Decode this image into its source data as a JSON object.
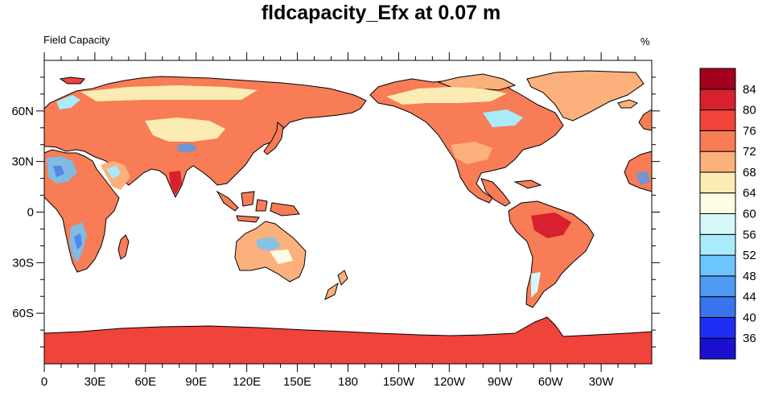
{
  "title": "fldcapacity_Efx at 0.07 m",
  "left_string": "Field Capacity",
  "units": "%",
  "map": {
    "projection": "cylindrical equidistant",
    "center_longitude": 180,
    "lon_range": [
      0,
      360
    ],
    "lat_range": [
      -90,
      90
    ],
    "ocean_color": "#ffffff",
    "antarctica_color": "#f0433a",
    "coastline_color": "#000000",
    "x_tick_labels": [
      "0",
      "30E",
      "60E",
      "90E",
      "120E",
      "150E",
      "180",
      "150W",
      "120W",
      "90W",
      "60W",
      "30W"
    ],
    "x_tick_lons": [
      0,
      30,
      60,
      90,
      120,
      150,
      180,
      210,
      240,
      270,
      300,
      330
    ],
    "y_tick_labels": [
      "60N",
      "30N",
      "0",
      "30S",
      "60S"
    ],
    "y_tick_lats": [
      60,
      30,
      0,
      -30,
      -60
    ]
  },
  "colorbar": {
    "labels": [
      "36",
      "40",
      "44",
      "48",
      "52",
      "56",
      "60",
      "64",
      "68",
      "72",
      "76",
      "80",
      "84"
    ],
    "colors": [
      "#1b0fd0",
      "#1f2ef2",
      "#3a73ee",
      "#4f9af2",
      "#6cc6fb",
      "#a8ecfb",
      "#d4f8f8",
      "#fdfde6",
      "#fbecb4",
      "#fcb07c",
      "#f87c55",
      "#f0433a",
      "#d8202e",
      "#a3001f"
    ]
  }
}
